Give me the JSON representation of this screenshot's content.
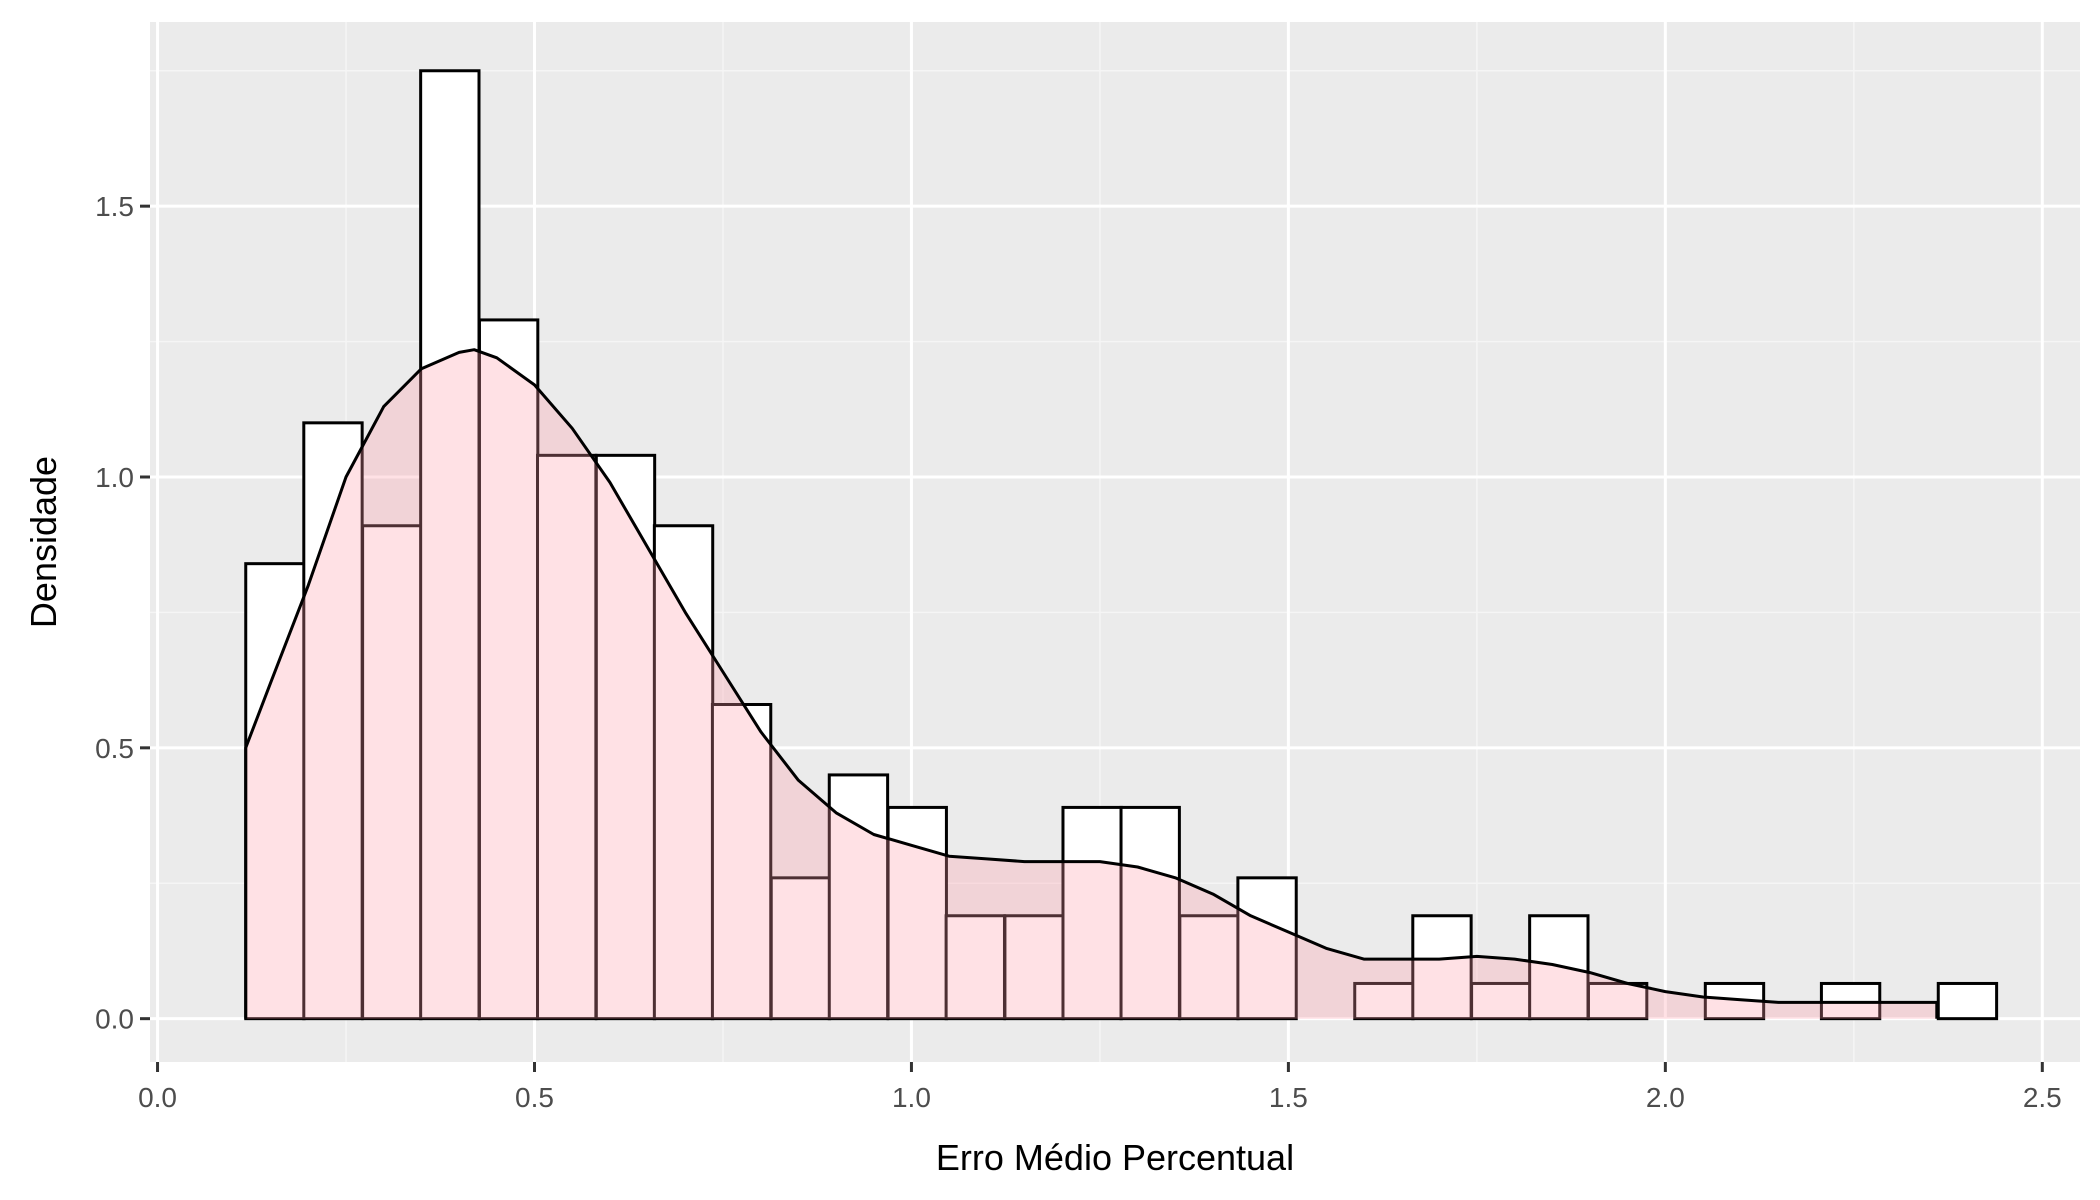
{
  "chart_data": {
    "type": "bar",
    "xlabel": "Erro Médio Percentual",
    "ylabel": "Densidade",
    "xlim": [
      -0.01,
      2.55
    ],
    "ylim": [
      -0.08,
      1.84
    ],
    "grid": true,
    "x_ticks": [
      0.0,
      0.5,
      1.0,
      1.5,
      2.0,
      2.5
    ],
    "x_tick_labels": [
      "0.0",
      "0.5",
      "1.0",
      "1.5",
      "2.0",
      "2.5"
    ],
    "y_ticks": [
      0.0,
      0.5,
      1.0,
      1.5
    ],
    "y_tick_labels": [
      "0.0",
      "0.5",
      "1.0",
      "1.5"
    ],
    "histogram": {
      "bin_width": 0.0774,
      "bins_start": [
        0.117,
        0.194,
        0.272,
        0.349,
        0.427,
        0.504,
        0.582,
        0.659,
        0.736,
        0.814,
        0.891,
        0.969,
        1.046,
        1.124,
        1.201,
        1.278,
        1.356,
        1.433,
        1.511,
        1.588,
        1.665,
        1.743,
        1.82,
        1.898,
        1.975,
        2.053,
        2.13,
        2.207,
        2.285,
        2.362
      ],
      "density": [
        0.84,
        1.1,
        0.91,
        1.75,
        1.29,
        1.04,
        1.04,
        0.91,
        0.58,
        0.26,
        0.45,
        0.39,
        0.19,
        0.19,
        0.39,
        0.39,
        0.19,
        0.26,
        0.0,
        0.065,
        0.19,
        0.065,
        0.19,
        0.065,
        0.0,
        0.065,
        0.0,
        0.065,
        0.0,
        0.065
      ],
      "fill_color": "#ffffff",
      "stroke_color": "#000000"
    },
    "density_curve": {
      "x": [
        0.117,
        0.15,
        0.2,
        0.25,
        0.3,
        0.35,
        0.4,
        0.42,
        0.45,
        0.5,
        0.55,
        0.6,
        0.65,
        0.7,
        0.75,
        0.8,
        0.85,
        0.9,
        0.95,
        1.0,
        1.05,
        1.1,
        1.15,
        1.2,
        1.25,
        1.3,
        1.35,
        1.4,
        1.45,
        1.5,
        1.55,
        1.6,
        1.65,
        1.7,
        1.75,
        1.8,
        1.85,
        1.9,
        1.95,
        2.0,
        2.05,
        2.1,
        2.15,
        2.2,
        2.25,
        2.3,
        2.36
      ],
      "y": [
        0.5,
        0.62,
        0.8,
        1.0,
        1.13,
        1.2,
        1.23,
        1.235,
        1.22,
        1.17,
        1.09,
        0.99,
        0.87,
        0.75,
        0.64,
        0.53,
        0.44,
        0.38,
        0.34,
        0.32,
        0.3,
        0.295,
        0.29,
        0.29,
        0.29,
        0.28,
        0.26,
        0.23,
        0.19,
        0.16,
        0.13,
        0.11,
        0.11,
        0.11,
        0.115,
        0.11,
        0.1,
        0.085,
        0.065,
        0.05,
        0.04,
        0.035,
        0.03,
        0.03,
        0.03,
        0.03,
        0.03
      ],
      "fill_color": "#ff9aa8",
      "fill_opacity": 0.3,
      "stroke_color": "#000000"
    },
    "colors": {
      "panel_background": "#ebebeb",
      "grid_major": "#ffffff",
      "grid_minor": "#f5f5f5",
      "tick": "#333333"
    }
  }
}
